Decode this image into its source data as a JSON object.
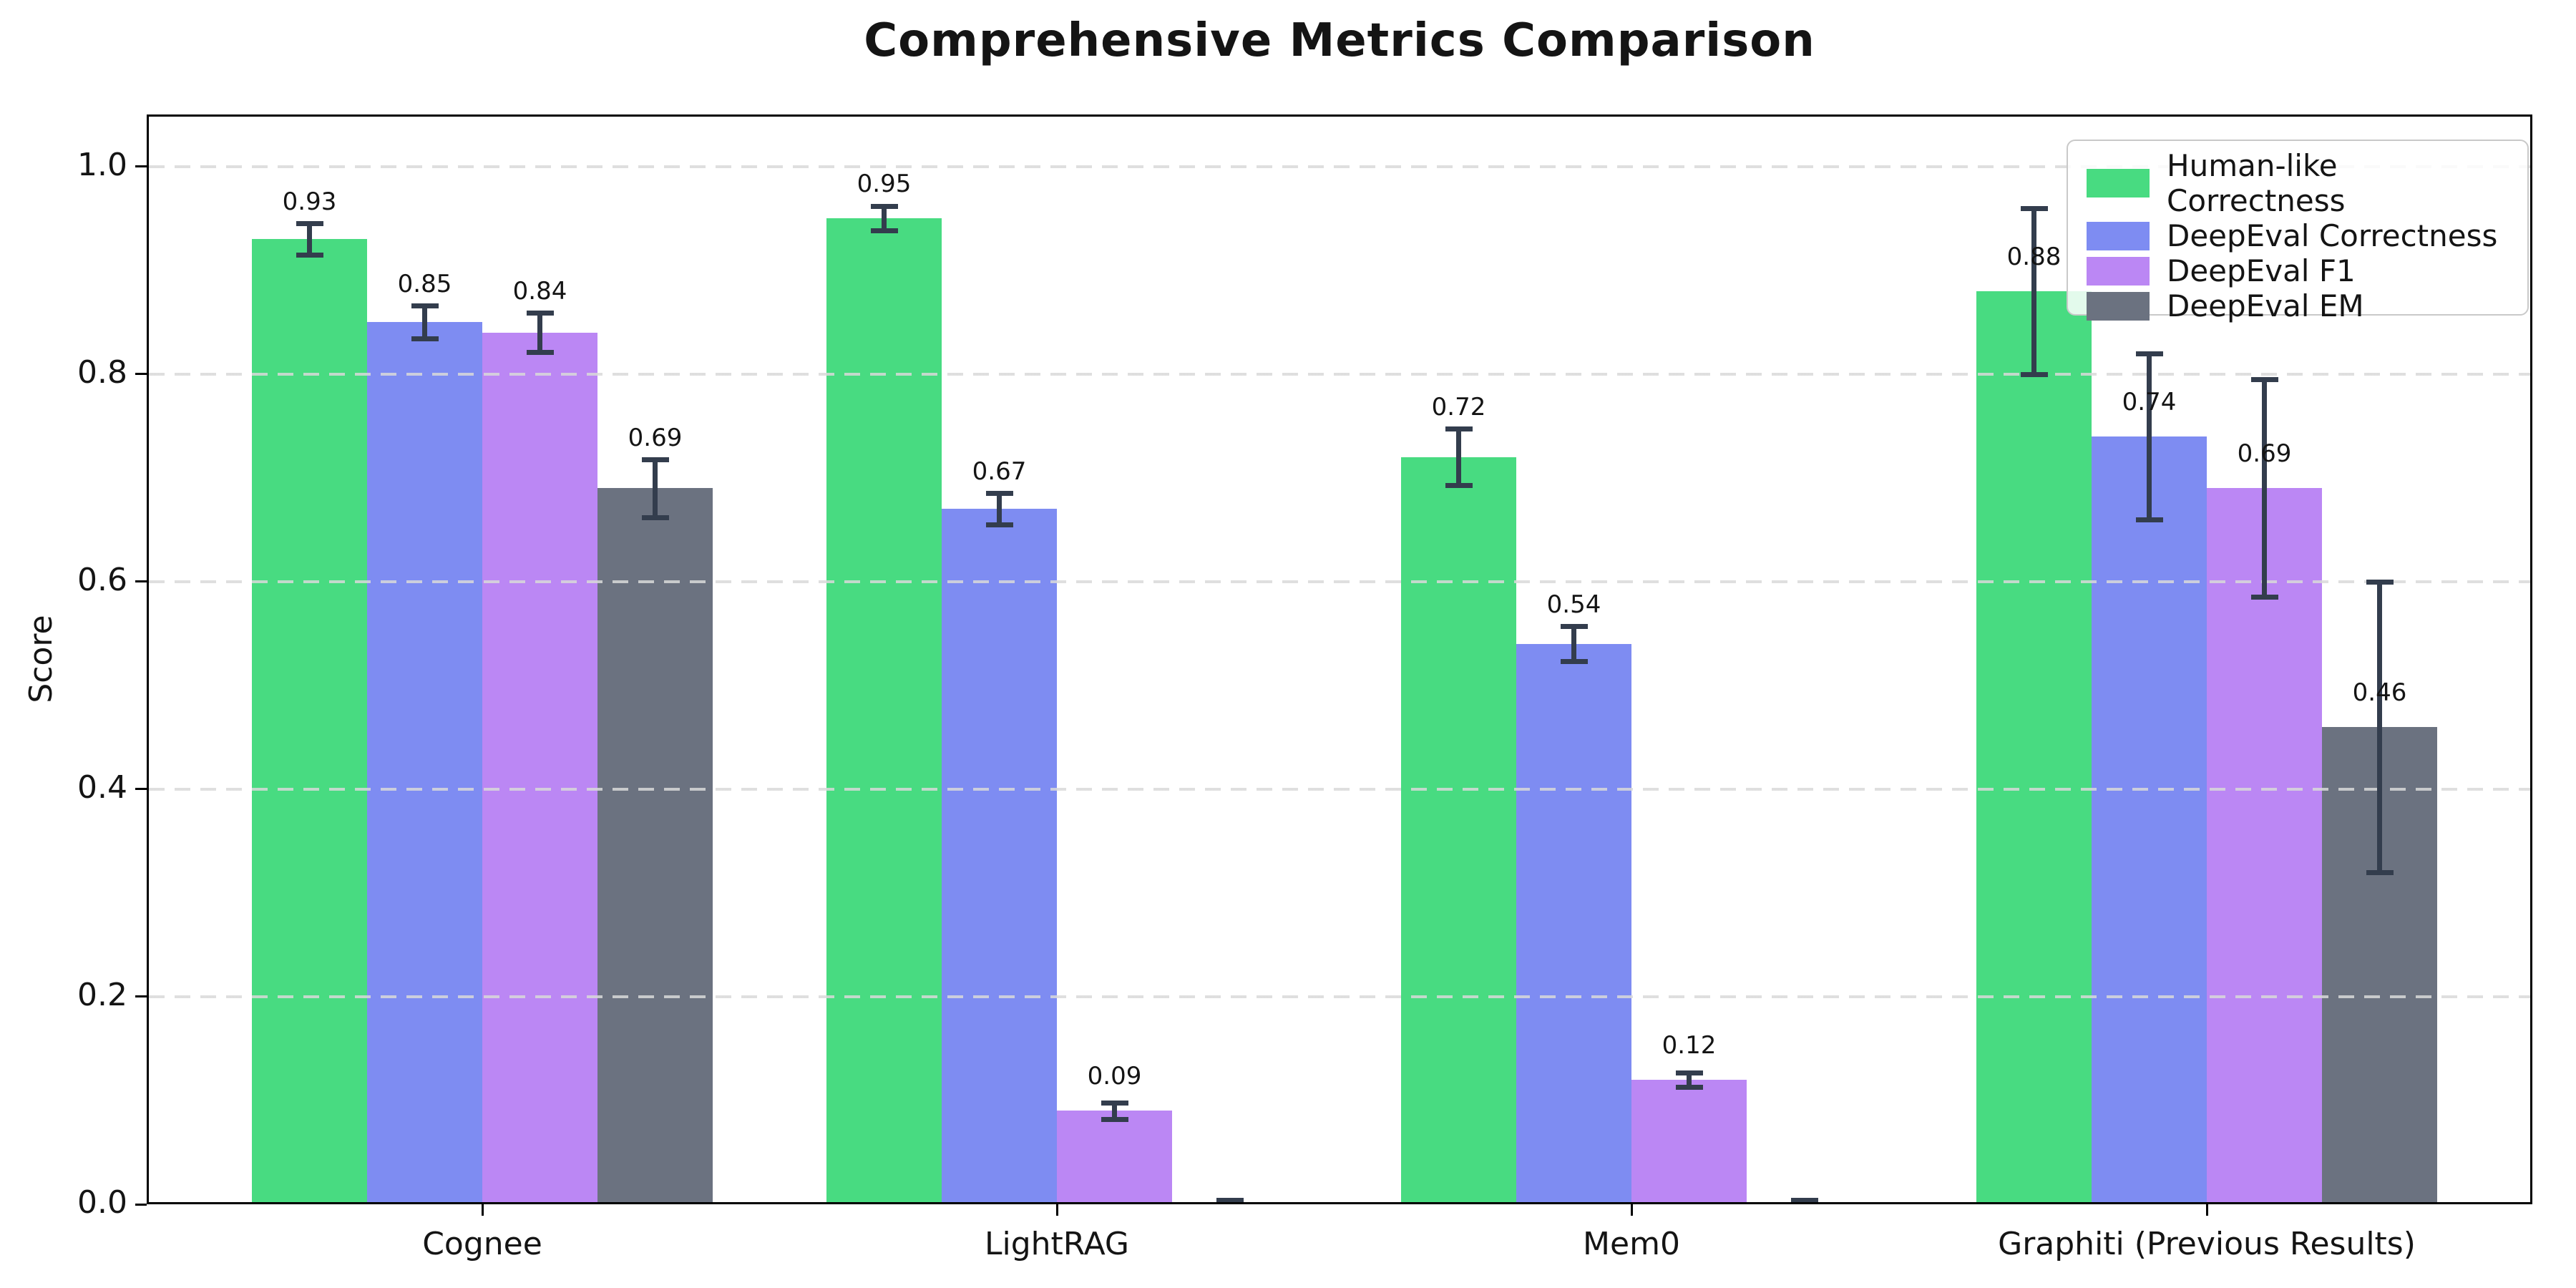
{
  "chart_data": {
    "type": "bar",
    "title": "Comprehensive Metrics Comparison",
    "ylabel": "Score",
    "categories": [
      "Cognee",
      "LightRAG",
      "Mem0",
      "Graphiti (Previous Results)"
    ],
    "series": [
      {
        "name": "Human-like Correctness",
        "color": "#48db81",
        "values": [
          0.93,
          0.95,
          0.72,
          0.88
        ],
        "errors": [
          0.015,
          0.012,
          0.027,
          0.08
        ],
        "bar_labels": [
          "0.93",
          "0.95",
          "0.72",
          "0.88"
        ]
      },
      {
        "name": "DeepEval Correctness",
        "color": "#7e8cf2",
        "values": [
          0.85,
          0.67,
          0.54,
          0.74
        ],
        "errors": [
          0.016,
          0.015,
          0.017,
          0.08
        ],
        "bar_labels": [
          "0.85",
          "0.67",
          "0.54",
          "0.74"
        ]
      },
      {
        "name": "DeepEval F1",
        "color": "#bb87f4",
        "values": [
          0.84,
          0.09,
          0.12,
          0.69
        ],
        "errors": [
          0.019,
          0.008,
          0.007,
          0.105
        ],
        "bar_labels": [
          "0.84",
          "0.09",
          "0.12",
          "0.69"
        ]
      },
      {
        "name": "DeepEval EM",
        "color": "#6b7280",
        "values": [
          0.69,
          0.0,
          0.0,
          0.46
        ],
        "errors": [
          0.028,
          0.004,
          0.004,
          0.14
        ],
        "bar_labels": [
          "0.69",
          "",
          "",
          "0.46"
        ]
      }
    ],
    "ylim": [
      0,
      1.05
    ],
    "yticks": [
      0.0,
      0.2,
      0.4,
      0.6,
      0.8,
      1.0
    ],
    "ytick_labels": [
      "0.0",
      "0.2",
      "0.4",
      "0.6",
      "0.8",
      "1.0"
    ],
    "grid": "horizontal-dashed",
    "legend_position": "upper-right",
    "error_bar_color": "#333d4d",
    "grid_color": "#d9d9d9",
    "background_color": "#ffffff"
  }
}
